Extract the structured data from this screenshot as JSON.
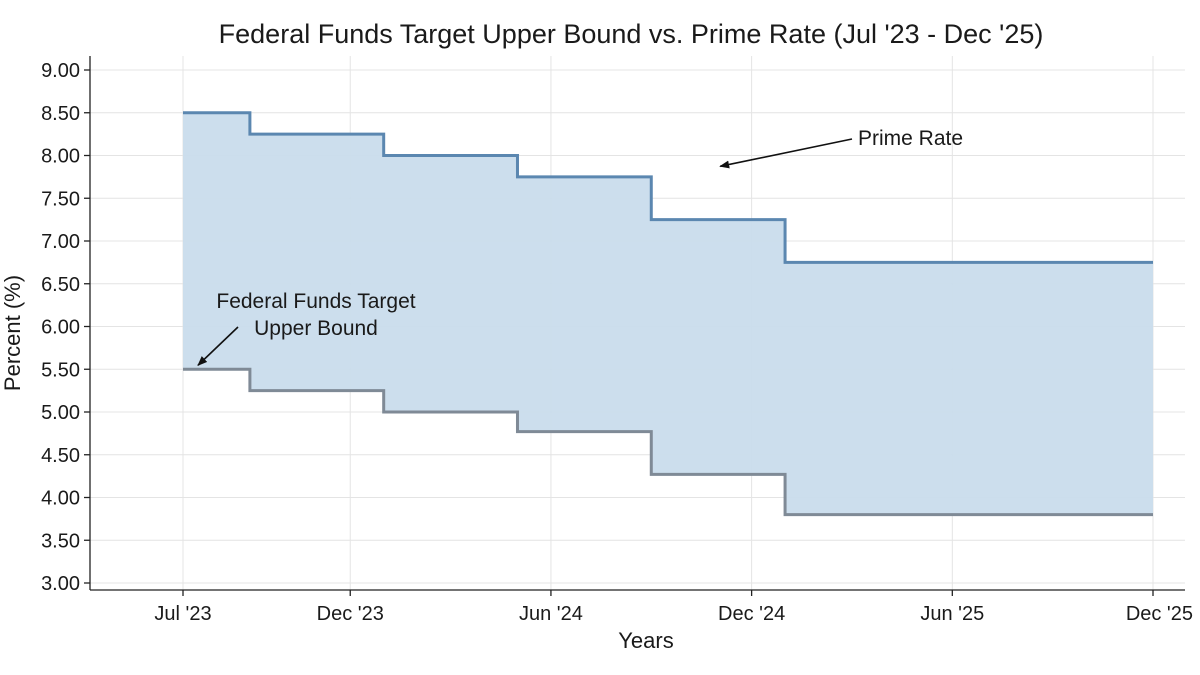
{
  "chart_data": {
    "type": "line",
    "step": true,
    "title": "Federal Funds Target Upper Bound vs. Prime Rate (Jul '23 - Dec '25)",
    "xlabel": "Years",
    "ylabel": "Percent (%)",
    "x_ticks": [
      {
        "label": "Jul '23",
        "date": "2023-07"
      },
      {
        "label": "Dec '23",
        "date": "2023-12"
      },
      {
        "label": "Jun '24",
        "date": "2024-06"
      },
      {
        "label": "Dec '24",
        "date": "2024-12"
      },
      {
        "label": "Jun '25",
        "date": "2025-06"
      },
      {
        "label": "Dec '25",
        "date": "2025-12"
      }
    ],
    "y_ticks": [
      "3.00",
      "3.50",
      "4.00",
      "4.50",
      "5.00",
      "5.50",
      "6.00",
      "6.50",
      "7.00",
      "7.50",
      "8.00",
      "8.50",
      "9.00"
    ],
    "ylim": [
      3.0,
      9.0
    ],
    "xlim": [
      "2023-07",
      "2025-12"
    ],
    "grid": true,
    "fill_between_series": true,
    "series": [
      {
        "name": "Prime Rate",
        "color": "#5b87b0",
        "points": [
          {
            "date": "2023-07",
            "value": 8.5
          },
          {
            "date": "2023-09",
            "value": 8.25
          },
          {
            "date": "2024-01",
            "value": 8.0
          },
          {
            "date": "2024-05",
            "value": 7.75
          },
          {
            "date": "2024-09",
            "value": 7.25
          },
          {
            "date": "2025-01",
            "value": 6.75
          },
          {
            "date": "2025-12",
            "value": 6.75
          }
        ]
      },
      {
        "name": "Federal Funds Target Upper Bound",
        "color": "#7f8a96",
        "points": [
          {
            "date": "2023-07",
            "value": 5.5
          },
          {
            "date": "2023-09",
            "value": 5.25
          },
          {
            "date": "2024-01",
            "value": 5.0
          },
          {
            "date": "2024-05",
            "value": 4.77
          },
          {
            "date": "2024-09",
            "value": 4.27
          },
          {
            "date": "2025-01",
            "value": 3.8
          },
          {
            "date": "2025-12",
            "value": 3.8
          }
        ]
      }
    ],
    "annotations": [
      {
        "text": "Prime Rate",
        "series": "Prime Rate",
        "date": "2024-11",
        "value": 7.85
      },
      {
        "text_lines": [
          "Federal Funds Target",
          "Upper Bound"
        ],
        "series": "Federal Funds Target Upper Bound",
        "date": "2023-07",
        "value": 5.5
      }
    ],
    "fill_color": "#c9dcec"
  }
}
